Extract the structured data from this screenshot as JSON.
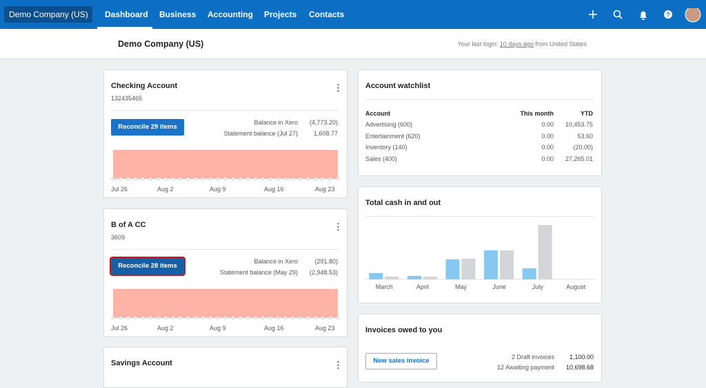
{
  "nav": {
    "org": "Demo Company (US)",
    "items": [
      "Dashboard",
      "Business",
      "Accounting",
      "Projects",
      "Contacts"
    ]
  },
  "subheader": {
    "org_name": "Demo Company (US)",
    "login_prefix": "Your last login:",
    "login_link": "10 days ago",
    "login_suffix": "from United States"
  },
  "accounts": [
    {
      "name": "Checking Account",
      "number": "132435465",
      "button": "Reconcile 29 items",
      "balance_label": "Balance in Xero",
      "balance": "(4,773.20)",
      "statement_label": "Statement balance (Jul 27)",
      "statement": "1,608.77",
      "dates": [
        "Jul 26",
        "Aug 2",
        "Aug 9",
        "Aug 16",
        "Aug 23"
      ]
    },
    {
      "name": "B of A CC",
      "number": "3609",
      "button": "Reconcile 28 items",
      "balance_label": "Balance in Xero",
      "balance": "(291.80)",
      "statement_label": "Statement balance (May 29)",
      "statement": "(2,948.53)",
      "dates": [
        "Jul 26",
        "Aug 2",
        "Aug 9",
        "Aug 16",
        "Aug 23"
      ]
    }
  ],
  "savings": {
    "name": "Savings Account"
  },
  "watchlist": {
    "title": "Account watchlist",
    "columns": [
      "Account",
      "This month",
      "YTD"
    ],
    "rows": [
      [
        "Advertising (600)",
        "0.00",
        "10,453.75"
      ],
      [
        "Entertainment (620)",
        "0.00",
        "53.60"
      ],
      [
        "Inventory (140)",
        "0.00",
        "(20.00)"
      ],
      [
        "Sales (400)",
        "0.00",
        "27,265.01"
      ]
    ]
  },
  "cash": {
    "type": "bar",
    "title": "Total cash in and out",
    "categories": [
      "March",
      "April",
      "May",
      "June",
      "July",
      "August"
    ],
    "series": [
      {
        "color": "#86c8ef",
        "values": [
          9,
          5,
          29,
          42,
          16,
          0
        ]
      },
      {
        "color": "#d3d5d8",
        "values": [
          4,
          4,
          30,
          42,
          79,
          0
        ]
      }
    ]
  },
  "invoices": {
    "title": "Invoices owed to you",
    "button": "New sales invoice",
    "rows": [
      [
        "2 Draft invoices",
        "1,100.00"
      ],
      [
        "12 Awaiting payment",
        "10,698.68"
      ]
    ]
  }
}
